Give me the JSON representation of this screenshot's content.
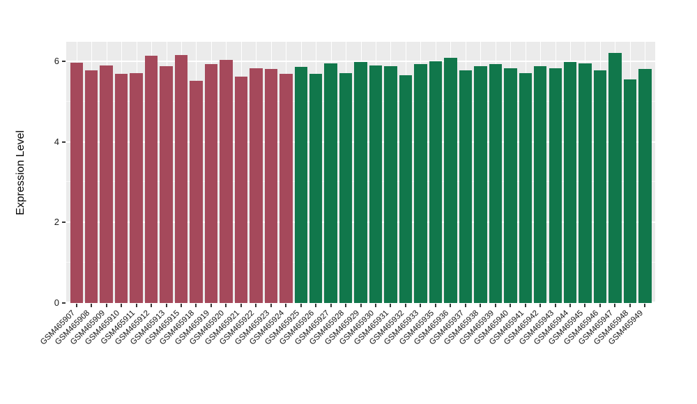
{
  "chart_data": {
    "type": "bar",
    "title": "",
    "ylabel": "Expression Level",
    "xlabel": "",
    "ylim": [
      0,
      6.48
    ],
    "yticks": [
      0,
      2,
      4,
      6
    ],
    "minor_gridlines": [
      1,
      3,
      5
    ],
    "grid": "on",
    "legend": "none",
    "panel_bg": "#EBEBEB",
    "grid_color": "#FFFFFF",
    "axis_text_color": "#1a1a1a",
    "categories": [
      "GSM465907",
      "GSM465908",
      "GSM465909",
      "GSM465910",
      "GSM465911",
      "GSM465912",
      "GSM465913",
      "GSM465915",
      "GSM465918",
      "GSM465919",
      "GSM465920",
      "GSM465921",
      "GSM465922",
      "GSM465923",
      "GSM465924",
      "GSM465925",
      "GSM465926",
      "GSM465927",
      "GSM465928",
      "GSM465929",
      "GSM465930",
      "GSM465931",
      "GSM465932",
      "GSM465933",
      "GSM465935",
      "GSM465936",
      "GSM465937",
      "GSM465938",
      "GSM465939",
      "GSM465940",
      "GSM465941",
      "GSM465942",
      "GSM465943",
      "GSM465944",
      "GSM465945",
      "GSM465946",
      "GSM465947",
      "GSM465948",
      "GSM465949"
    ],
    "values": [
      5.97,
      5.77,
      5.9,
      5.68,
      5.7,
      6.13,
      5.87,
      6.15,
      5.52,
      5.93,
      6.03,
      5.62,
      5.82,
      5.8,
      5.68,
      5.85,
      5.68,
      5.95,
      5.7,
      5.98,
      5.9,
      5.88,
      5.65,
      5.93,
      6.0,
      6.08,
      5.78,
      5.88,
      5.93,
      5.82,
      5.7,
      5.87,
      5.83,
      5.98,
      5.95,
      5.77,
      6.2,
      5.55,
      5.8
    ],
    "groups": [
      {
        "name": "maroon-group",
        "color": "#A5495B",
        "start": 0,
        "end": 14
      },
      {
        "name": "green-group",
        "color": "#11774B",
        "start": 15,
        "end": 38
      }
    ]
  }
}
